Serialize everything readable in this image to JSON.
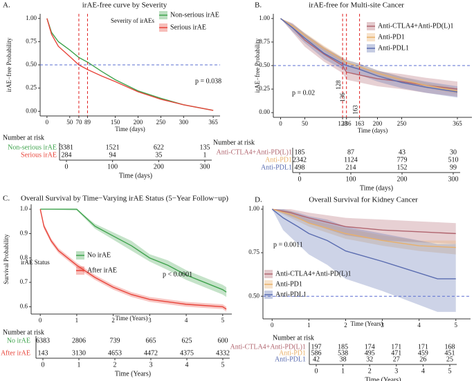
{
  "chart_data": [
    {
      "type": "line",
      "panel_label": "A.",
      "title": "irAE-free curve by Severity",
      "xlabel": "Time (days)",
      "ylabel": "irAE−free Probability",
      "xlim": [
        -15,
        380
      ],
      "ylim": [
        -0.05,
        1.05
      ],
      "xticks": [
        0,
        50,
        70,
        89,
        150,
        200,
        250,
        300,
        365
      ],
      "yticks": [
        {
          "value": 0,
          "label": "0.00"
        },
        {
          "value": 0.25,
          "label": "0.25"
        },
        {
          "value": 0.5,
          "label": "0.50"
        },
        {
          "value": 0.75,
          "label": "0.75"
        },
        {
          "value": 1,
          "label": "1.00"
        }
      ],
      "hline": 0.5,
      "vlines": [
        70,
        89
      ],
      "annotation": "p = 0.038",
      "legend_title": "Severity of irAEs",
      "legend_position": "top-right",
      "series": [
        {
          "name": "Non-serious irAE",
          "color": "#3fa34d",
          "x": [
            0,
            10,
            25,
            50,
            70,
            89,
            120,
            150,
            200,
            250,
            300,
            365
          ],
          "y": [
            1,
            0.85,
            0.75,
            0.66,
            0.58,
            0.53,
            0.43,
            0.34,
            0.22,
            0.14,
            0.07,
            0.01
          ]
        },
        {
          "name": "Serious irAE",
          "color": "#e8443a",
          "x": [
            0,
            10,
            25,
            50,
            70,
            89,
            120,
            150,
            200,
            250,
            300,
            365
          ],
          "y": [
            1,
            0.83,
            0.7,
            0.59,
            0.5,
            0.45,
            0.38,
            0.32,
            0.21,
            0.13,
            0.07,
            0.01
          ]
        }
      ],
      "risk_table": {
        "title": "Number at risk",
        "xlabel": "Time (days)",
        "xticks": [
          0,
          100,
          200,
          300
        ],
        "rows": [
          {
            "name": "Non-serious irAE",
            "values": [
              3381,
              1521,
              622,
              135
            ]
          },
          {
            "name": "Serious irAE",
            "values": [
              284,
              94,
              35,
              1
            ]
          }
        ]
      }
    },
    {
      "type": "line",
      "panel_label": "B.",
      "title": "irAE-free for Multi-site Cancer",
      "xlabel": "Time (days)",
      "ylabel": "irAE−free Probability",
      "xlim": [
        -15,
        395
      ],
      "ylim": [
        -0.05,
        1.05
      ],
      "xticks": [
        0,
        50,
        128,
        136,
        163,
        200,
        250,
        365
      ],
      "yticks": [
        {
          "value": 0,
          "label": "0.00"
        },
        {
          "value": 0.25,
          "label": "0.25"
        },
        {
          "value": 0.5,
          "label": "0.50"
        },
        {
          "value": 0.75,
          "label": "0.75"
        },
        {
          "value": 1,
          "label": "1.00"
        }
      ],
      "hline": 0.5,
      "vlines": [
        128,
        136,
        163
      ],
      "annotation": "p = 0.02",
      "legend_position": "top-right",
      "series": [
        {
          "name": "Anti-CTLA4+Anti-PD(L)1",
          "color": "#b0646e",
          "x": [
            0,
            25,
            50,
            90,
            128,
            136,
            163,
            200,
            250,
            300,
            365
          ],
          "y": [
            1,
            0.9,
            0.77,
            0.62,
            0.5,
            0.43,
            0.4,
            0.36,
            0.33,
            0.29,
            0.25
          ],
          "lower": [
            1,
            0.85,
            0.7,
            0.54,
            0.42,
            0.35,
            0.32,
            0.28,
            0.25,
            0.21,
            0.17
          ],
          "upper": [
            1,
            0.95,
            0.84,
            0.7,
            0.58,
            0.51,
            0.48,
            0.44,
            0.41,
            0.37,
            0.33
          ]
        },
        {
          "name": "Anti-PD1",
          "color": "#e8b06a",
          "x": [
            0,
            25,
            50,
            90,
            128,
            136,
            163,
            200,
            250,
            300,
            365
          ],
          "y": [
            1,
            0.92,
            0.82,
            0.68,
            0.56,
            0.53,
            0.49,
            0.42,
            0.35,
            0.29,
            0.23
          ],
          "lower": [
            1,
            0.9,
            0.79,
            0.65,
            0.53,
            0.5,
            0.46,
            0.39,
            0.32,
            0.26,
            0.2
          ],
          "upper": [
            1,
            0.94,
            0.85,
            0.71,
            0.59,
            0.56,
            0.52,
            0.45,
            0.38,
            0.32,
            0.26
          ]
        },
        {
          "name": "Anti-PDL1",
          "color": "#5a6cb0",
          "x": [
            0,
            25,
            50,
            90,
            128,
            136,
            163,
            200,
            250,
            300,
            365
          ],
          "y": [
            1,
            0.9,
            0.79,
            0.63,
            0.52,
            0.5,
            0.46,
            0.39,
            0.32,
            0.27,
            0.22
          ],
          "lower": [
            1,
            0.86,
            0.74,
            0.57,
            0.46,
            0.44,
            0.4,
            0.33,
            0.26,
            0.21,
            0.16
          ],
          "upper": [
            1,
            0.94,
            0.84,
            0.69,
            0.58,
            0.56,
            0.52,
            0.45,
            0.38,
            0.33,
            0.28
          ]
        }
      ],
      "risk_table": {
        "title": "Number at risk",
        "xlabel": "Time (days)",
        "xticks": [
          0,
          100,
          200,
          300
        ],
        "rows": [
          {
            "name": "Anti-CTLA4+Anti-PD(L)1",
            "values": [
              185,
              87,
              43,
              30
            ]
          },
          {
            "name": "Anti-PD1",
            "values": [
              2342,
              1124,
              779,
              510
            ]
          },
          {
            "name": "Anti-PDL1",
            "values": [
              498,
              214,
              152,
              99
            ]
          }
        ]
      }
    },
    {
      "type": "line",
      "panel_label": "C.",
      "title": "Overall Survival by Time−Varying irAE Status (5−Year Follow−up)",
      "xlabel": "Time (Years)",
      "ylabel": "Survival Probability",
      "xlim": [
        -0.25,
        5.25
      ],
      "ylim": [
        0.57,
        1.02
      ],
      "xticks": [
        0,
        1,
        2,
        3,
        4,
        5
      ],
      "yticks": [
        0.6,
        0.7,
        0.8,
        0.9,
        {
          "value": 1,
          "label": "1.0"
        }
      ],
      "annotation": "p < 0.0001",
      "legend_title": "irAE Status",
      "legend_position": "left",
      "series": [
        {
          "name": "No irAE",
          "color": "#3fa34d",
          "x": [
            0,
            1,
            1.5,
            2,
            2.5,
            3,
            3.5,
            4,
            4.5,
            5,
            5.1
          ],
          "y": [
            1,
            1,
            0.93,
            0.89,
            0.85,
            0.8,
            0.77,
            0.73,
            0.7,
            0.67,
            0.66
          ],
          "lower": [
            1,
            0.995,
            0.92,
            0.875,
            0.83,
            0.785,
            0.75,
            0.71,
            0.68,
            0.65,
            0.64
          ],
          "upper": [
            1,
            1,
            0.94,
            0.905,
            0.87,
            0.815,
            0.79,
            0.75,
            0.72,
            0.69,
            0.68
          ]
        },
        {
          "name": "After irAE",
          "color": "#e8443a",
          "x": [
            0,
            0.1,
            0.3,
            0.5,
            1,
            1.5,
            2,
            2.5,
            3,
            3.5,
            4,
            5,
            5.1
          ],
          "y": [
            1,
            0.93,
            0.87,
            0.83,
            0.77,
            0.72,
            0.68,
            0.65,
            0.63,
            0.62,
            0.61,
            0.6,
            0.59
          ],
          "lower": [
            1,
            0.92,
            0.86,
            0.82,
            0.76,
            0.71,
            0.67,
            0.64,
            0.62,
            0.61,
            0.6,
            0.59,
            0.58
          ],
          "upper": [
            1,
            0.94,
            0.88,
            0.84,
            0.78,
            0.73,
            0.69,
            0.66,
            0.64,
            0.63,
            0.62,
            0.61,
            0.6
          ]
        }
      ],
      "risk_table": {
        "title": "Number at risk",
        "xlabel": "Time (Years)",
        "xticks": [
          0,
          1,
          2,
          3,
          4,
          5
        ],
        "rows": [
          {
            "name": "No irAE",
            "values": [
              6383,
              2806,
              739,
              665,
              625,
              600
            ]
          },
          {
            "name": "After irAE",
            "values": [
              143,
              3130,
              4653,
              4472,
              4375,
              4332
            ]
          }
        ]
      }
    },
    {
      "type": "line",
      "panel_label": "D.",
      "title": "Overall Survival for Kidney Cancer",
      "xlabel": "Time (Years)",
      "xlim": [
        -0.25,
        5.4
      ],
      "ylim": [
        0.37,
        1.02
      ],
      "xticks": [
        0,
        1,
        2,
        3,
        4,
        5
      ],
      "yticks": [
        {
          "value": 0.5,
          "label": "0.50"
        },
        {
          "value": 0.75,
          "label": "0.75"
        },
        {
          "value": 1,
          "label": "1.00"
        }
      ],
      "hline": 0.5,
      "annotation": "p = 0.0011",
      "legend_position": "bottom-left",
      "series": [
        {
          "name": "Anti-CTLA4+Anti-PD(L)1",
          "color": "#b0646e",
          "x": [
            0,
            0.5,
            1,
            2,
            3,
            4,
            5
          ],
          "y": [
            1,
            0.98,
            0.95,
            0.9,
            0.88,
            0.87,
            0.86
          ],
          "lower": [
            1,
            0.96,
            0.92,
            0.85,
            0.82,
            0.81,
            0.8
          ],
          "upper": [
            1,
            1,
            0.98,
            0.95,
            0.94,
            0.93,
            0.92
          ]
        },
        {
          "name": "Anti-PD1",
          "color": "#e8b06a",
          "x": [
            0,
            0.5,
            1,
            2,
            3,
            4,
            5
          ],
          "y": [
            1,
            0.97,
            0.92,
            0.86,
            0.82,
            0.79,
            0.78
          ],
          "lower": [
            1,
            0.95,
            0.9,
            0.83,
            0.79,
            0.76,
            0.74
          ],
          "upper": [
            1,
            0.99,
            0.94,
            0.89,
            0.85,
            0.82,
            0.82
          ]
        },
        {
          "name": "Anti-PDL1",
          "color": "#5a6cb0",
          "x": [
            0,
            0.3,
            0.7,
            1,
            1.5,
            2,
            3,
            4.5,
            5
          ],
          "y": [
            1,
            0.95,
            0.9,
            0.86,
            0.82,
            0.76,
            0.7,
            0.6,
            0.6
          ],
          "lower": [
            1,
            0.88,
            0.8,
            0.74,
            0.68,
            0.6,
            0.53,
            0.41,
            0.41
          ],
          "upper": [
            1,
            1,
            0.98,
            0.96,
            0.94,
            0.9,
            0.86,
            0.8,
            0.8
          ]
        }
      ],
      "risk_table": {
        "title": "Number at risk",
        "xlabel": "Time (Years)",
        "xticks": [
          0,
          1,
          2,
          3,
          4,
          5
        ],
        "rows": [
          {
            "name": "Anti-CTLA4+Anti-PD(L)1",
            "values": [
              197,
              185,
              174,
              171,
              171,
              168
            ]
          },
          {
            "name": "Anti-PD1",
            "values": [
              586,
              538,
              495,
              471,
              459,
              451
            ]
          },
          {
            "name": "Anti-PDL1",
            "values": [
              42,
              38,
              32,
              27,
              26,
              25
            ]
          }
        ]
      }
    }
  ]
}
